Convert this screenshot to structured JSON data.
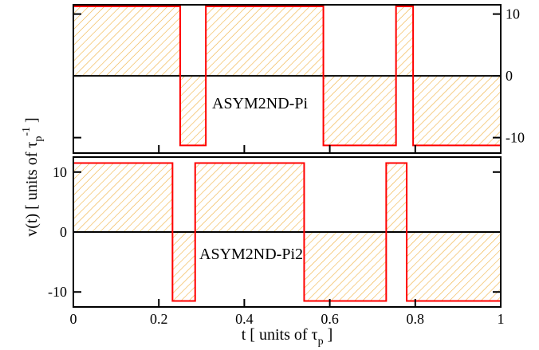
{
  "chart_data": [
    {
      "type": "line",
      "step": true,
      "panel": "top",
      "annotation": "ASYM2ND-Pi",
      "xlim": [
        0,
        1
      ],
      "ylim": [
        -12.5,
        11.5
      ],
      "y_axis_side": "right",
      "y_ticks": [
        10,
        0,
        -10
      ],
      "y_tick_labels": [
        "10",
        "0",
        "-10"
      ],
      "show_x_tick_labels": false,
      "amplitude": 11.25,
      "fill": "hatched",
      "segments": [
        {
          "x0": 0.0,
          "x1": 0.25,
          "y": 11.25
        },
        {
          "x0": 0.25,
          "x1": 0.31,
          "y": -11.25
        },
        {
          "x0": 0.31,
          "x1": 0.585,
          "y": 11.25
        },
        {
          "x0": 0.585,
          "x1": 0.755,
          "y": -11.25
        },
        {
          "x0": 0.755,
          "x1": 0.795,
          "y": 11.25
        },
        {
          "x0": 0.795,
          "x1": 1.0,
          "y": -11.25
        }
      ]
    },
    {
      "type": "line",
      "step": true,
      "panel": "bottom",
      "annotation": "ASYM2ND-Pi2",
      "xlim": [
        0,
        1
      ],
      "ylim": [
        -12.5,
        12.5
      ],
      "y_axis_side": "left",
      "y_ticks": [
        10,
        0,
        -10
      ],
      "y_tick_labels": [
        "10",
        "0",
        "-10"
      ],
      "x_ticks": [
        0,
        0.2,
        0.4,
        0.6,
        0.8,
        1
      ],
      "x_tick_labels": [
        "0",
        "0.2",
        "0.4",
        "0.6",
        "0.8",
        "1"
      ],
      "amplitude": 11.5,
      "fill": "hatched",
      "segments": [
        {
          "x0": 0.0,
          "x1": 0.232,
          "y": 11.5
        },
        {
          "x0": 0.232,
          "x1": 0.285,
          "y": -11.5
        },
        {
          "x0": 0.285,
          "x1": 0.54,
          "y": 11.5
        },
        {
          "x0": 0.54,
          "x1": 0.732,
          "y": -11.5
        },
        {
          "x0": 0.732,
          "x1": 0.78,
          "y": 11.5
        },
        {
          "x0": 0.78,
          "x1": 1.0,
          "y": -11.5
        }
      ]
    }
  ],
  "labels": {
    "ylabel_main": "v(t) [ units of τ",
    "ylabel_sub": "p",
    "ylabel_sup": "-1",
    "ylabel_close": " ]",
    "xlabel_main": "t [ units of  τ",
    "xlabel_sub": "p",
    "xlabel_close": " ]"
  },
  "colors": {
    "signal": "#ff0000",
    "hatch": "#f0b040",
    "baseline": "#000000",
    "frame": "#000000"
  }
}
